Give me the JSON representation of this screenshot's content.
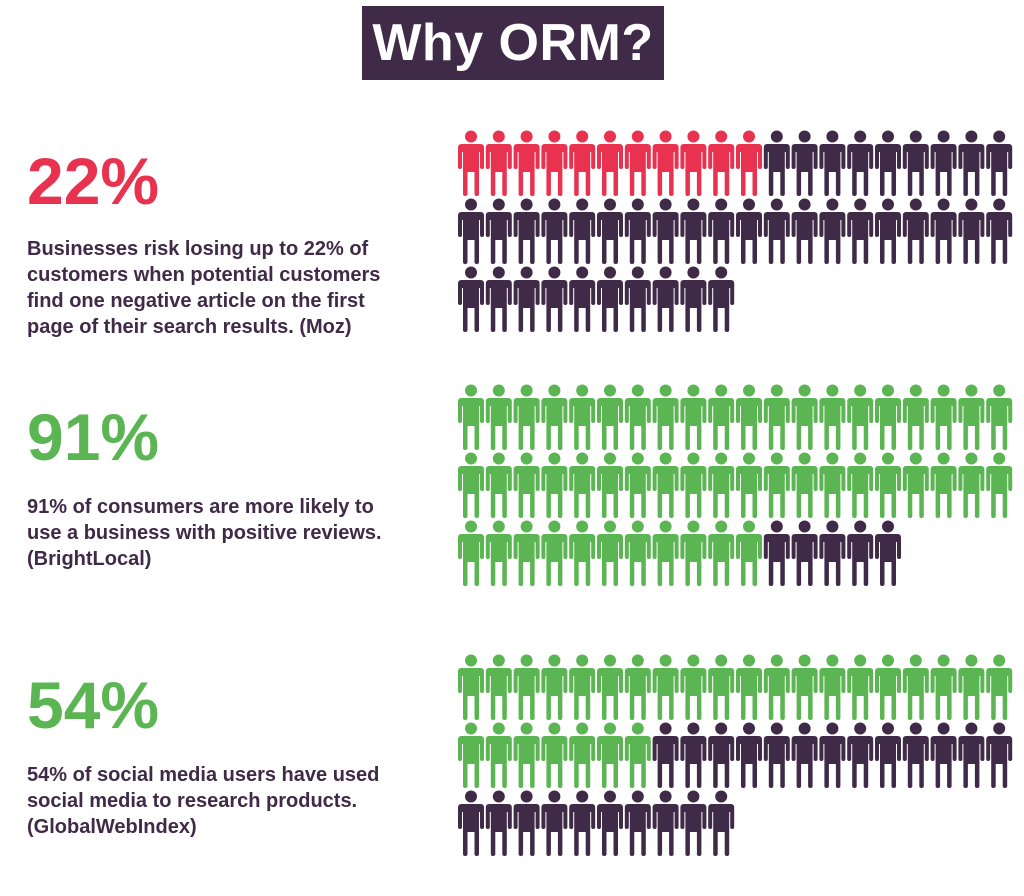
{
  "header": {
    "title": "Why ORM?"
  },
  "colors": {
    "dark": "#3f2a47",
    "red": "#e8324f",
    "green": "#5ab552",
    "white": "#ffffff"
  },
  "stats": [
    {
      "percent_label": "22%",
      "value": 22,
      "description_lines": [
        "Businesses risk losing up to 22% of",
        "customers when potential customers",
        "find one negative article on the first",
        "page of their search results. (Moz)"
      ],
      "highlight_color": "#e8324f",
      "icon": "person-icon",
      "rows": [
        20,
        20,
        10
      ]
    },
    {
      "percent_label": "91%",
      "value": 91,
      "description_lines": [
        "91% of consumers are more likely to",
        "use a business with positive reviews.",
        "(BrightLocal)"
      ],
      "highlight_color": "#5ab552",
      "icon": "person-icon",
      "rows": [
        20,
        20,
        16
      ]
    },
    {
      "percent_label": "54%",
      "value": 54,
      "description_lines": [
        "54% of social media users have used",
        "social media to research products.",
        "(GlobalWebIndex)"
      ],
      "highlight_color": "#5ab552",
      "icon": "person-icon",
      "rows": [
        20,
        20,
        10
      ]
    }
  ]
}
